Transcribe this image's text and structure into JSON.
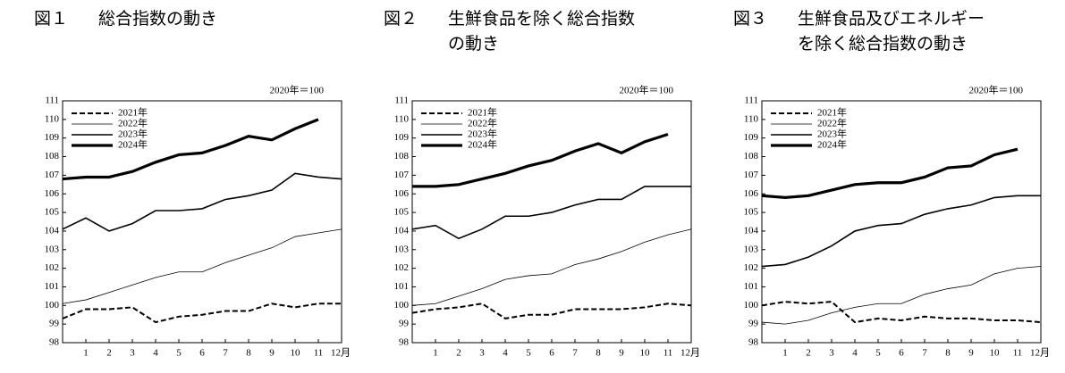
{
  "chart_data": [
    {
      "type": "line",
      "figure": "図１",
      "title": [
        "総合指数の動き"
      ],
      "note": "2020年＝100",
      "x": [
        0,
        1,
        2,
        3,
        4,
        5,
        6,
        7,
        8,
        9,
        10,
        11,
        12
      ],
      "xlim": [
        0,
        12
      ],
      "xticks": [
        1,
        2,
        3,
        4,
        5,
        6,
        7,
        8,
        9,
        10,
        11,
        {
          "value": 12,
          "label": "12月"
        }
      ],
      "ylim": [
        98,
        111
      ],
      "yticks": [
        98,
        99,
        100,
        101,
        102,
        103,
        104,
        105,
        106,
        107,
        108,
        109,
        110,
        111
      ],
      "series": [
        {
          "name": "2021年",
          "color": "#000000",
          "values": [
            99.3,
            99.8,
            99.8,
            99.9,
            99.1,
            99.4,
            99.5,
            99.7,
            99.7,
            100.1,
            99.9,
            100.1,
            100.1
          ]
        },
        {
          "name": "2022年",
          "color": "#000000",
          "values": [
            100.1,
            100.3,
            100.7,
            101.1,
            101.5,
            101.8,
            101.8,
            102.3,
            102.7,
            103.1,
            103.7,
            103.9,
            104.1
          ]
        },
        {
          "name": "2023年",
          "color": "#000000",
          "values": [
            104.1,
            104.7,
            104.0,
            104.4,
            105.1,
            105.1,
            105.2,
            105.7,
            105.9,
            106.2,
            107.1,
            106.9,
            106.8
          ]
        },
        {
          "name": "2024年",
          "color": "#000000",
          "values": [
            106.8,
            106.9,
            106.9,
            107.2,
            107.7,
            108.1,
            108.2,
            108.6,
            109.1,
            108.9,
            109.5,
            110.0,
            null
          ]
        }
      ]
    },
    {
      "type": "line",
      "figure": "図２",
      "title": [
        "生鮮食品を除く総合指数",
        "の動き"
      ],
      "note": "2020年＝100",
      "x": [
        0,
        1,
        2,
        3,
        4,
        5,
        6,
        7,
        8,
        9,
        10,
        11,
        12
      ],
      "xlim": [
        0,
        12
      ],
      "xticks": [
        1,
        2,
        3,
        4,
        5,
        6,
        7,
        8,
        9,
        10,
        11,
        {
          "value": 12,
          "label": "12月"
        }
      ],
      "ylim": [
        98,
        111
      ],
      "yticks": [
        98,
        99,
        100,
        101,
        102,
        103,
        104,
        105,
        106,
        107,
        108,
        109,
        110,
        111
      ],
      "series": [
        {
          "name": "2021年",
          "color": "#000000",
          "values": [
            99.6,
            99.8,
            99.9,
            100.1,
            99.3,
            99.5,
            99.5,
            99.8,
            99.8,
            99.8,
            99.9,
            100.1,
            100.0
          ]
        },
        {
          "name": "2022年",
          "color": "#000000",
          "values": [
            100.0,
            100.1,
            100.5,
            100.9,
            101.4,
            101.6,
            101.7,
            102.2,
            102.5,
            102.9,
            103.4,
            103.8,
            104.1
          ]
        },
        {
          "name": "2023年",
          "color": "#000000",
          "values": [
            104.1,
            104.3,
            103.6,
            104.1,
            104.8,
            104.8,
            105.0,
            105.4,
            105.7,
            105.7,
            106.4,
            106.4,
            106.4
          ]
        },
        {
          "name": "2024年",
          "color": "#000000",
          "values": [
            106.4,
            106.4,
            106.5,
            106.8,
            107.1,
            107.5,
            107.8,
            108.3,
            108.7,
            108.2,
            108.8,
            109.2,
            null
          ]
        }
      ]
    },
    {
      "type": "line",
      "figure": "図３",
      "title": [
        "生鮮食品及びエネルギー",
        "を除く総合指数の動き"
      ],
      "note": "2020年＝100",
      "x": [
        0,
        1,
        2,
        3,
        4,
        5,
        6,
        7,
        8,
        9,
        10,
        11,
        12
      ],
      "xlim": [
        0,
        12
      ],
      "xticks": [
        1,
        2,
        3,
        4,
        5,
        6,
        7,
        8,
        9,
        10,
        11,
        {
          "value": 12,
          "label": "12月"
        }
      ],
      "ylim": [
        98,
        111
      ],
      "yticks": [
        98,
        99,
        100,
        101,
        102,
        103,
        104,
        105,
        106,
        107,
        108,
        109,
        110,
        111
      ],
      "series": [
        {
          "name": "2021年",
          "color": "#000000",
          "values": [
            100.0,
            100.2,
            100.1,
            100.2,
            99.1,
            99.3,
            99.2,
            99.4,
            99.3,
            99.3,
            99.2,
            99.2,
            99.1
          ]
        },
        {
          "name": "2022年",
          "color": "#000000",
          "values": [
            99.1,
            99.0,
            99.2,
            99.6,
            99.9,
            100.1,
            100.1,
            100.6,
            100.9,
            101.1,
            101.7,
            102.0,
            102.1
          ]
        },
        {
          "name": "2023年",
          "color": "#000000",
          "values": [
            102.1,
            102.2,
            102.6,
            103.2,
            104.0,
            104.3,
            104.4,
            104.9,
            105.2,
            105.4,
            105.8,
            105.9,
            105.9
          ]
        },
        {
          "name": "2024年",
          "color": "#000000",
          "values": [
            105.9,
            105.8,
            105.9,
            106.2,
            106.5,
            106.6,
            106.6,
            106.9,
            107.4,
            107.5,
            108.1,
            108.4,
            null
          ]
        }
      ]
    }
  ]
}
